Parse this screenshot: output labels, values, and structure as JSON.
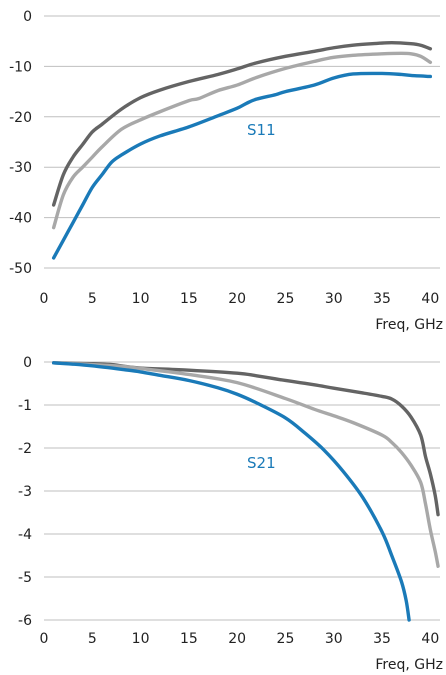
{
  "chart_data": [
    {
      "type": "line",
      "title": "",
      "xlabel": "Freq, GHz",
      "ylabel": "",
      "xlim": [
        0,
        41
      ],
      "ylim": [
        -50,
        0
      ],
      "xticks": [
        0,
        5,
        10,
        15,
        20,
        25,
        30,
        35,
        40
      ],
      "yticks": [
        0,
        -10,
        -20,
        -30,
        -40,
        -50
      ],
      "grid": "horizontal",
      "annotation": {
        "text": "S11",
        "x": 22.5,
        "y": -22,
        "color": "#1a7ab8"
      },
      "series": [
        {
          "color": "#646464",
          "x": [
            1,
            2,
            3,
            4,
            5,
            6,
            8,
            10,
            12,
            15,
            18,
            20,
            22,
            25,
            28,
            30,
            32,
            34,
            36,
            38,
            39,
            40
          ],
          "y": [
            -37.5,
            -31.5,
            -28,
            -25.5,
            -23,
            -21.5,
            -18.5,
            -16.2,
            -14.7,
            -13,
            -11.6,
            -10.5,
            -9.3,
            -8,
            -7,
            -6.3,
            -5.8,
            -5.5,
            -5.3,
            -5.5,
            -5.8,
            -6.5
          ]
        },
        {
          "color": "#a8a8a8",
          "x": [
            1,
            2,
            3,
            4,
            5,
            6,
            8,
            10,
            12,
            15,
            16,
            18,
            20,
            22,
            25,
            28,
            30,
            32,
            35,
            37,
            38,
            39,
            40
          ],
          "y": [
            -42,
            -35.5,
            -32,
            -30,
            -28,
            -26,
            -22.5,
            -20.6,
            -19,
            -16.8,
            -16.4,
            -14.8,
            -13.7,
            -12.2,
            -10.4,
            -9,
            -8.2,
            -7.8,
            -7.5,
            -7.4,
            -7.5,
            -8,
            -9.2
          ]
        },
        {
          "color": "#1a7ab8",
          "x": [
            1,
            2,
            3,
            4,
            5,
            6,
            7,
            8,
            10,
            12,
            15,
            18,
            20,
            21,
            22,
            24,
            25,
            28,
            30,
            32,
            35,
            37,
            38,
            40
          ],
          "y": [
            -48,
            -44.5,
            -41,
            -37.5,
            -34,
            -31.5,
            -29,
            -27.6,
            -25.4,
            -23.8,
            -22,
            -19.8,
            -18.3,
            -17.3,
            -16.5,
            -15.6,
            -15,
            -13.7,
            -12.3,
            -11.5,
            -11.4,
            -11.6,
            -11.8,
            -12
          ]
        }
      ]
    },
    {
      "type": "line",
      "title": "",
      "xlabel": "Freq, GHz",
      "ylabel": "",
      "xlim": [
        0,
        41
      ],
      "ylim": [
        -6,
        0
      ],
      "xticks": [
        0,
        5,
        10,
        15,
        20,
        25,
        30,
        35,
        40
      ],
      "yticks": [
        0,
        -1,
        -2,
        -3,
        -4,
        -5,
        -6
      ],
      "grid": "horizontal",
      "annotation": {
        "text": "S21",
        "x": 22.5,
        "y": -2.5,
        "color": "#1a7ab8"
      },
      "series": [
        {
          "color": "#646464",
          "x": [
            1,
            3,
            5,
            7,
            8,
            10,
            15,
            20,
            22,
            25,
            28,
            30,
            33,
            35,
            36,
            37,
            38,
            39,
            39.5,
            40,
            40.5,
            40.8
          ],
          "y": [
            -0.02,
            -0.03,
            -0.04,
            -0.06,
            -0.09,
            -0.14,
            -0.19,
            -0.26,
            -0.32,
            -0.43,
            -0.53,
            -0.61,
            -0.72,
            -0.8,
            -0.86,
            -1.02,
            -1.28,
            -1.7,
            -2.2,
            -2.6,
            -3.1,
            -3.55
          ]
        },
        {
          "color": "#a8a8a8",
          "x": [
            1,
            3,
            5,
            8,
            10,
            15,
            20,
            25,
            28,
            30,
            32,
            35,
            36,
            37,
            38,
            39,
            39.5,
            40,
            40.5,
            40.8
          ],
          "y": [
            -0.02,
            -0.04,
            -0.06,
            -0.1,
            -0.15,
            -0.29,
            -0.48,
            -0.85,
            -1.1,
            -1.25,
            -1.41,
            -1.7,
            -1.87,
            -2.1,
            -2.4,
            -2.8,
            -3.3,
            -3.9,
            -4.4,
            -4.75
          ]
        },
        {
          "color": "#1a7ab8",
          "x": [
            1,
            3,
            5,
            8,
            10,
            12,
            15,
            18,
            20,
            22,
            25,
            27,
            29,
            31,
            33,
            35,
            36,
            37,
            37.5,
            37.8
          ],
          "y": [
            -0.02,
            -0.05,
            -0.09,
            -0.17,
            -0.23,
            -0.31,
            -0.43,
            -0.6,
            -0.75,
            -0.95,
            -1.3,
            -1.65,
            -2.05,
            -2.55,
            -3.15,
            -3.95,
            -4.5,
            -5.1,
            -5.55,
            -6.0
          ]
        }
      ]
    }
  ]
}
